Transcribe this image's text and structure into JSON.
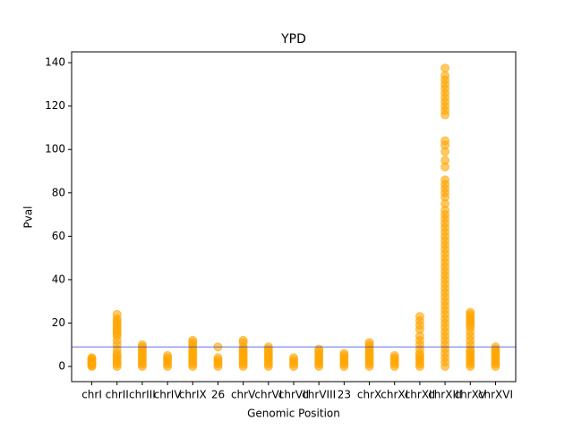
{
  "chart_data": {
    "type": "strip",
    "title": "YPD",
    "xlabel": "Genomic Position",
    "ylabel": "Pval",
    "color": "#ffa500",
    "threshold": 9,
    "threshold_color": "#3344cc",
    "categories": [
      "chrI",
      "chrII",
      "chrIII",
      "chrIV",
      "chrIX",
      "26",
      "chrV",
      "chrVI",
      "chrVII",
      "chrVIII",
      "23",
      "chrX",
      "chrXI",
      "chrXII",
      "chrXIII",
      "chrXV",
      "chrXVI"
    ],
    "values": [
      [
        0,
        0.5,
        1,
        1.5,
        2,
        2.5,
        3,
        3.5,
        4
      ],
      [
        0,
        1,
        2,
        3,
        4,
        5,
        6,
        8,
        10,
        12,
        14,
        15,
        16,
        17,
        18,
        19,
        20,
        21,
        22,
        24
      ],
      [
        0,
        1,
        2,
        3,
        4,
        5,
        6,
        7,
        8,
        9,
        10
      ],
      [
        0,
        1,
        2,
        3,
        4,
        5
      ],
      [
        0,
        1,
        2,
        3,
        4,
        5,
        6,
        7,
        8,
        9,
        10,
        11,
        12
      ],
      [
        0,
        1,
        2,
        3,
        4,
        9
      ],
      [
        0,
        1,
        2,
        3,
        4,
        5,
        6,
        7,
        8,
        9,
        11,
        12
      ],
      [
        0,
        1,
        2,
        3,
        4,
        5,
        6,
        7,
        8,
        9
      ],
      [
        0,
        1,
        2,
        3,
        4
      ],
      [
        0,
        1,
        2,
        3,
        4,
        5,
        6,
        7,
        8
      ],
      [
        0,
        1,
        2,
        3,
        4,
        5,
        6
      ],
      [
        0,
        1,
        2,
        3,
        4,
        5,
        6,
        7,
        8,
        9,
        10,
        11
      ],
      [
        0,
        1,
        2,
        3,
        4,
        5
      ],
      [
        0,
        1,
        2,
        3,
        4,
        5,
        6,
        8,
        10,
        12,
        14,
        17,
        19,
        21,
        23
      ],
      [
        0,
        2,
        4,
        6,
        8,
        10,
        12,
        14,
        16,
        18,
        20,
        22,
        24,
        26,
        28,
        30,
        32,
        34,
        36,
        38,
        40,
        42,
        44,
        46,
        48,
        50,
        52,
        54,
        56,
        58,
        60,
        62,
        64,
        66,
        68,
        70,
        72,
        75,
        78,
        80,
        82,
        84,
        86,
        92,
        95,
        99,
        102,
        104,
        116,
        118,
        120,
        122,
        124,
        126,
        128,
        130,
        132,
        134,
        137.5
      ],
      [
        0,
        1,
        2,
        3,
        4,
        5,
        6,
        7,
        8,
        10,
        12,
        14,
        16,
        18,
        19,
        20,
        21,
        22,
        23,
        24,
        25
      ],
      [
        0,
        1,
        2,
        3,
        4,
        5,
        6,
        7,
        8,
        9
      ]
    ],
    "ylim": [
      -7,
      145
    ],
    "yticks": [
      0,
      20,
      40,
      60,
      80,
      100,
      120,
      140
    ]
  }
}
